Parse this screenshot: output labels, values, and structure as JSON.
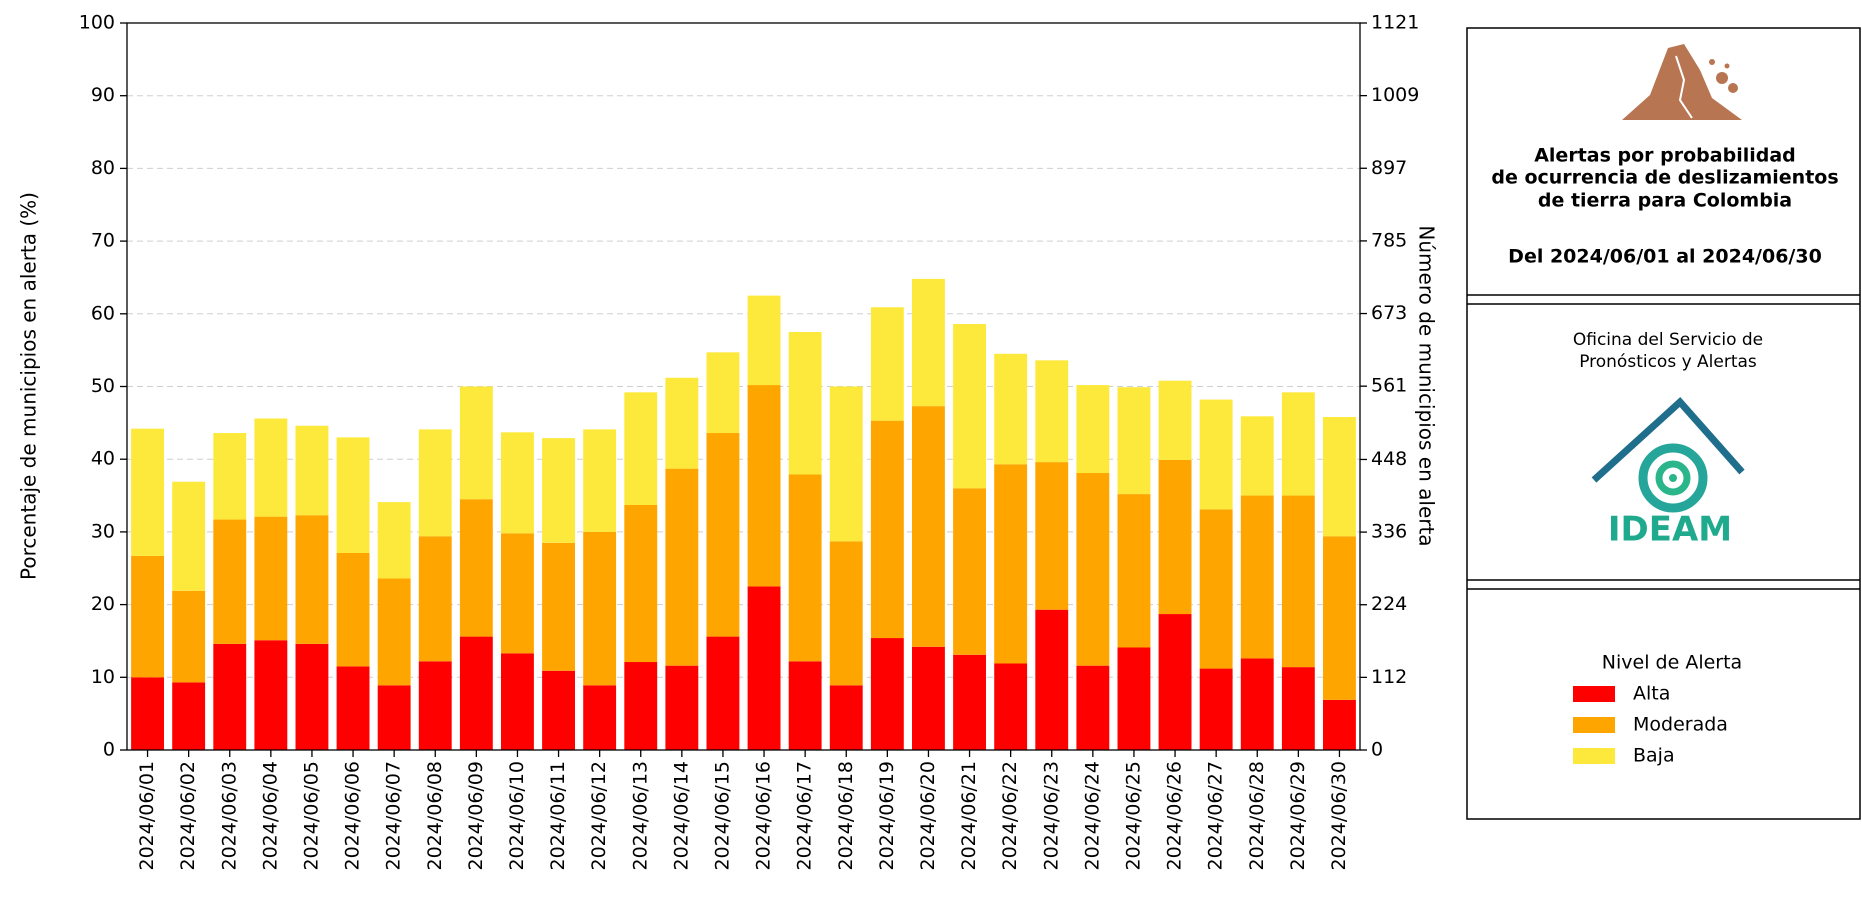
{
  "chart_data": {
    "type": "stacked_bar",
    "ylabel": "Porcentaje de municipios en alerta (%)",
    "y2label": "Número de municipios en alerta",
    "categories": [
      "2024/06/01",
      "2024/06/02",
      "2024/06/03",
      "2024/06/04",
      "2024/06/05",
      "2024/06/06",
      "2024/06/07",
      "2024/06/08",
      "2024/06/09",
      "2024/06/10",
      "2024/06/11",
      "2024/06/12",
      "2024/06/13",
      "2024/06/14",
      "2024/06/15",
      "2024/06/16",
      "2024/06/17",
      "2024/06/18",
      "2024/06/19",
      "2024/06/20",
      "2024/06/21",
      "2024/06/22",
      "2024/06/23",
      "2024/06/24",
      "2024/06/25",
      "2024/06/26",
      "2024/06/27",
      "2024/06/28",
      "2024/06/29",
      "2024/06/30"
    ],
    "series": [
      {
        "name": "Alta",
        "color": "#ff0000",
        "values": [
          10,
          9.3,
          14.6,
          15.1,
          14.6,
          11.5,
          8.9,
          12.2,
          15.6,
          13.3,
          10.9,
          8.9,
          12.1,
          11.6,
          15.6,
          22.5,
          12.2,
          8.9,
          15.4,
          14.2,
          13.1,
          11.9,
          19.3,
          11.6,
          14.1,
          18.7,
          11.2,
          12.6,
          11.4,
          6.9
        ]
      },
      {
        "name": "Moderada",
        "color": "#ffa500",
        "values": [
          16.7,
          12.6,
          17.1,
          17.0,
          17.7,
          15.6,
          14.7,
          17.2,
          18.9,
          16.5,
          17.6,
          21.1,
          21.6,
          27.1,
          28.0,
          27.7,
          25.7,
          19.8,
          29.9,
          33.1,
          22.9,
          27.4,
          20.3,
          26.5,
          21.1,
          21.2,
          21.9,
          22.4,
          23.6,
          22.5
        ]
      },
      {
        "name": "Baja",
        "color": "#fde93b",
        "values": [
          17.5,
          15.0,
          11.9,
          13.5,
          12.3,
          15.9,
          10.5,
          14.7,
          15.5,
          13.9,
          14.4,
          14.1,
          15.5,
          12.5,
          11.1,
          12.3,
          19.6,
          21.3,
          15.6,
          17.5,
          22.6,
          15.2,
          14.0,
          12.1,
          14.7,
          10.9,
          15.1,
          10.9,
          14.2,
          16.4
        ]
      }
    ],
    "ylim": [
      0,
      100
    ],
    "yticks": [
      0,
      10,
      20,
      30,
      40,
      50,
      60,
      70,
      80,
      90,
      100
    ],
    "y2lim": [
      0,
      1121
    ],
    "y2ticks": [
      0,
      112,
      224,
      336,
      448,
      561,
      673,
      785,
      897,
      1009,
      1121
    ],
    "grid": true,
    "legend_title": "Nivel de Alerta"
  },
  "panel": {
    "title_lines": [
      "Alertas por probabilidad",
      "de ocurrencia de deslizamientos",
      "de tierra para Colombia"
    ],
    "date_range": "Del 2024/06/01 al 2024/06/30",
    "office_lines": [
      "Oficina del Servicio de",
      "Pronósticos y Alertas"
    ],
    "logo_text": "IDEAM"
  }
}
